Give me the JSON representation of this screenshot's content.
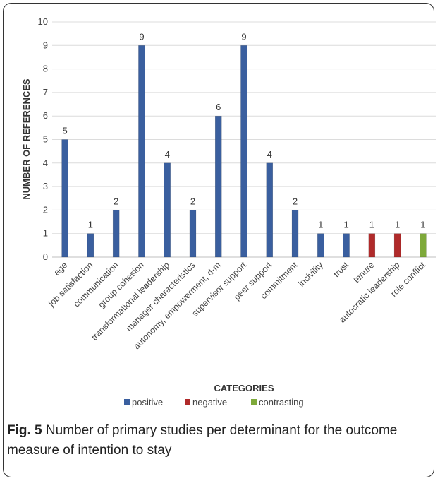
{
  "chart_data": {
    "type": "bar",
    "categories": [
      "age",
      "job satisfaction",
      "communication",
      "group cohesion",
      "transformational leadership",
      "manager characteristics",
      "autonomy, empowerment, d-m",
      "supervisor support",
      "peer support",
      "commitment",
      "incivility",
      "trust",
      "tenure",
      "autocratic leadership",
      "role conflict"
    ],
    "series": [
      {
        "name": "positive",
        "color": "#3a5f9f",
        "values": [
          5,
          1,
          2,
          9,
          4,
          2,
          6,
          9,
          4,
          2,
          1,
          1,
          null,
          null,
          null
        ]
      },
      {
        "name": "negative",
        "color": "#b02a2a",
        "values": [
          null,
          null,
          null,
          null,
          null,
          null,
          null,
          null,
          null,
          null,
          null,
          null,
          1,
          1,
          null
        ]
      },
      {
        "name": "contrasting",
        "color": "#7ea93a",
        "values": [
          null,
          null,
          null,
          null,
          null,
          null,
          null,
          null,
          null,
          null,
          null,
          null,
          null,
          null,
          1
        ]
      }
    ],
    "xlabel": "CATEGORIES",
    "ylabel": "NUMBER OF REFERENCES",
    "ylim": [
      0,
      10
    ],
    "yticks": [
      0,
      1,
      2,
      3,
      4,
      5,
      6,
      7,
      8,
      9,
      10
    ],
    "grid": true,
    "legend_position": "bottom"
  },
  "caption": {
    "label": "Fig. 5",
    "text": " Number of primary studies per determinant for the outcome measure of intention to stay"
  }
}
